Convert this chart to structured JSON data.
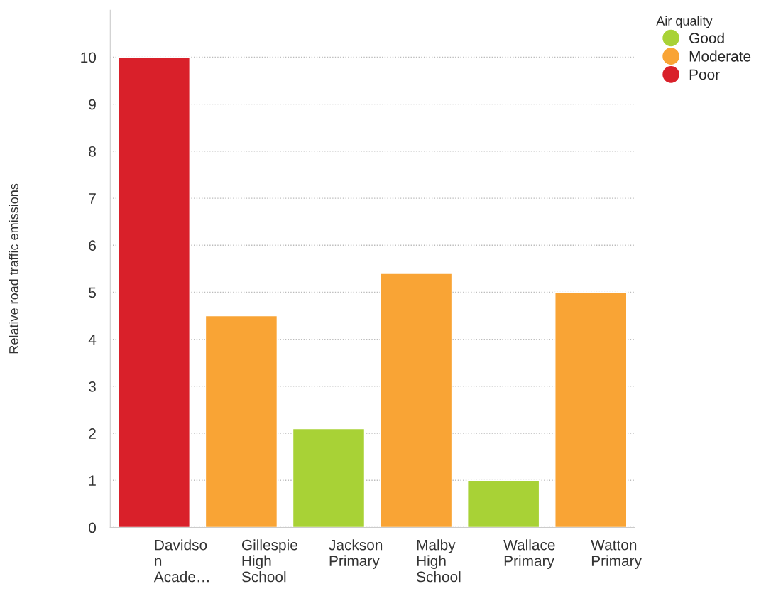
{
  "chart_data": {
    "type": "bar",
    "ylabel": "Relative road traffic emissions",
    "legend_title": "Air quality",
    "categories": [
      "Davidso\nn\nAcade…",
      "Gillespie\nHigh\nSchool",
      "Jackson\nPrimary",
      "Malby\nHigh\nSchool",
      "Wallace\nPrimary",
      "Watton\nPrimary"
    ],
    "series": [
      {
        "name": "Good",
        "color": "#a8d236",
        "values": [
          null,
          null,
          2.1,
          null,
          1,
          null
        ]
      },
      {
        "name": "Moderate",
        "color": "#f9a435",
        "values": [
          null,
          4.5,
          null,
          5.4,
          null,
          5
        ]
      },
      {
        "name": "Poor",
        "color": "#d9202a",
        "values": [
          10,
          null,
          null,
          null,
          null,
          null
        ]
      }
    ],
    "ylim": [
      0,
      11
    ],
    "yticks": [
      0,
      1,
      2,
      3,
      4,
      5,
      6,
      7,
      8,
      9,
      10
    ],
    "grid": "y",
    "legend": "top right",
    "marker": "circle"
  }
}
